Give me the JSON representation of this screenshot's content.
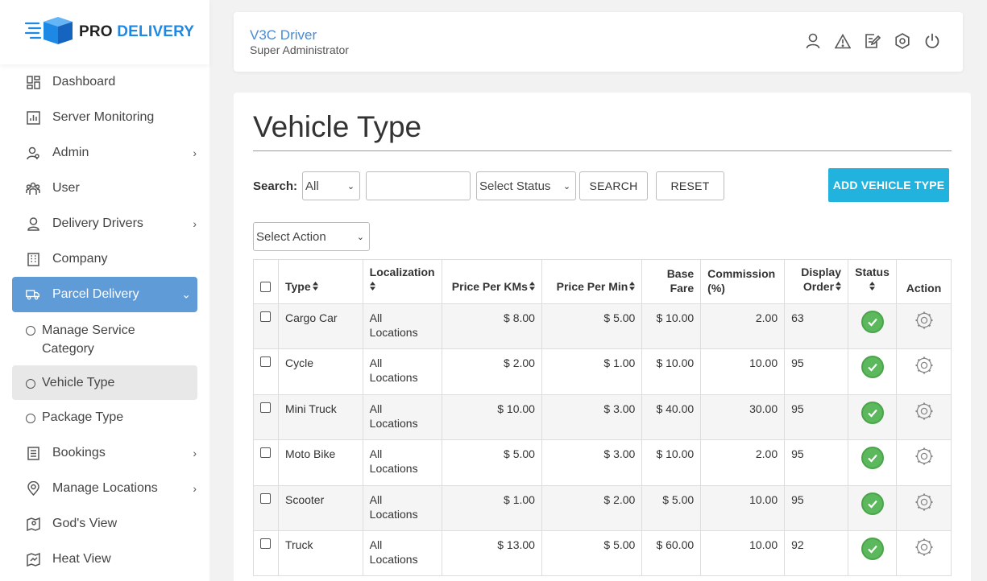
{
  "brand": {
    "pro": "PRO",
    "delivery": "DELIVERY"
  },
  "sidebar": {
    "items": [
      {
        "label": "Dashboard",
        "icon": "dashboard-icon"
      },
      {
        "label": "Server Monitoring",
        "icon": "chart-icon"
      },
      {
        "label": "Admin",
        "icon": "admin-icon",
        "has_submenu": true
      },
      {
        "label": "User",
        "icon": "users-icon"
      },
      {
        "label": "Delivery Drivers",
        "icon": "driver-icon",
        "has_submenu": true
      },
      {
        "label": "Company",
        "icon": "building-icon"
      },
      {
        "label": "Parcel Delivery",
        "icon": "truck-icon",
        "active": true,
        "expanded": true
      },
      {
        "label": "Bookings",
        "icon": "list-icon",
        "has_submenu": true
      },
      {
        "label": "Manage Locations",
        "icon": "location-icon",
        "has_submenu": true
      },
      {
        "label": "God's View",
        "icon": "map-icon"
      },
      {
        "label": "Heat View",
        "icon": "heatmap-icon"
      }
    ],
    "subitems": [
      {
        "label": "Manage Service Category"
      },
      {
        "label": "Vehicle Type",
        "active": true
      },
      {
        "label": "Package Type"
      }
    ]
  },
  "header": {
    "title": "V3C Driver",
    "subtitle": "Super Administrator"
  },
  "page": {
    "title": "Vehicle Type",
    "search_label": "Search:",
    "search_field_value": "All",
    "search_input_value": "",
    "status_select_value": "Select Status",
    "search_button": "SEARCH",
    "reset_button": "RESET",
    "add_button": "ADD VEHICLE TYPE",
    "action_select_value": "Select Action"
  },
  "table": {
    "headers": {
      "type": "Type",
      "localization": "Localization",
      "price_km": "Price Per KMs",
      "price_min": "Price Per Min",
      "base_fare_1": "Base",
      "base_fare_2": "Fare",
      "commission_1": "Commission",
      "commission_2": "(%)",
      "display_1": "Display",
      "display_2": "Order",
      "status": "Status",
      "action": "Action"
    },
    "rows": [
      {
        "type": "Cargo Car",
        "loc1": "All",
        "loc2": "Locations",
        "price_km": "$ 8.00",
        "price_min": "$ 5.00",
        "base_fare": "$ 10.00",
        "commission": "2.00",
        "order": "63"
      },
      {
        "type": "Cycle",
        "loc1": "All",
        "loc2": "Locations",
        "price_km": "$ 2.00",
        "price_min": "$ 1.00",
        "base_fare": "$ 10.00",
        "commission": "10.00",
        "order": "95"
      },
      {
        "type": "Mini Truck",
        "loc1": "All",
        "loc2": "Locations",
        "price_km": "$ 10.00",
        "price_min": "$ 3.00",
        "base_fare": "$ 40.00",
        "commission": "30.00",
        "order": "95"
      },
      {
        "type": "Moto Bike",
        "loc1": "All",
        "loc2": "Locations",
        "price_km": "$ 5.00",
        "price_min": "$ 3.00",
        "base_fare": "$ 10.00",
        "commission": "2.00",
        "order": "95"
      },
      {
        "type": "Scooter",
        "loc1": "All",
        "loc2": "Locations",
        "price_km": "$ 1.00",
        "price_min": "$ 2.00",
        "base_fare": "$ 5.00",
        "commission": "10.00",
        "order": "95"
      },
      {
        "type": "Truck",
        "loc1": "All",
        "loc2": "Locations",
        "price_km": "$ 13.00",
        "price_min": "$ 5.00",
        "base_fare": "$ 60.00",
        "commission": "10.00",
        "order": "92"
      }
    ]
  },
  "colors": {
    "accent": "#1e88e5",
    "active_nav": "#5f9bd6",
    "add_button": "#21b2dd",
    "status_active": "#5cb85c",
    "header_title": "#4a8ad0"
  }
}
